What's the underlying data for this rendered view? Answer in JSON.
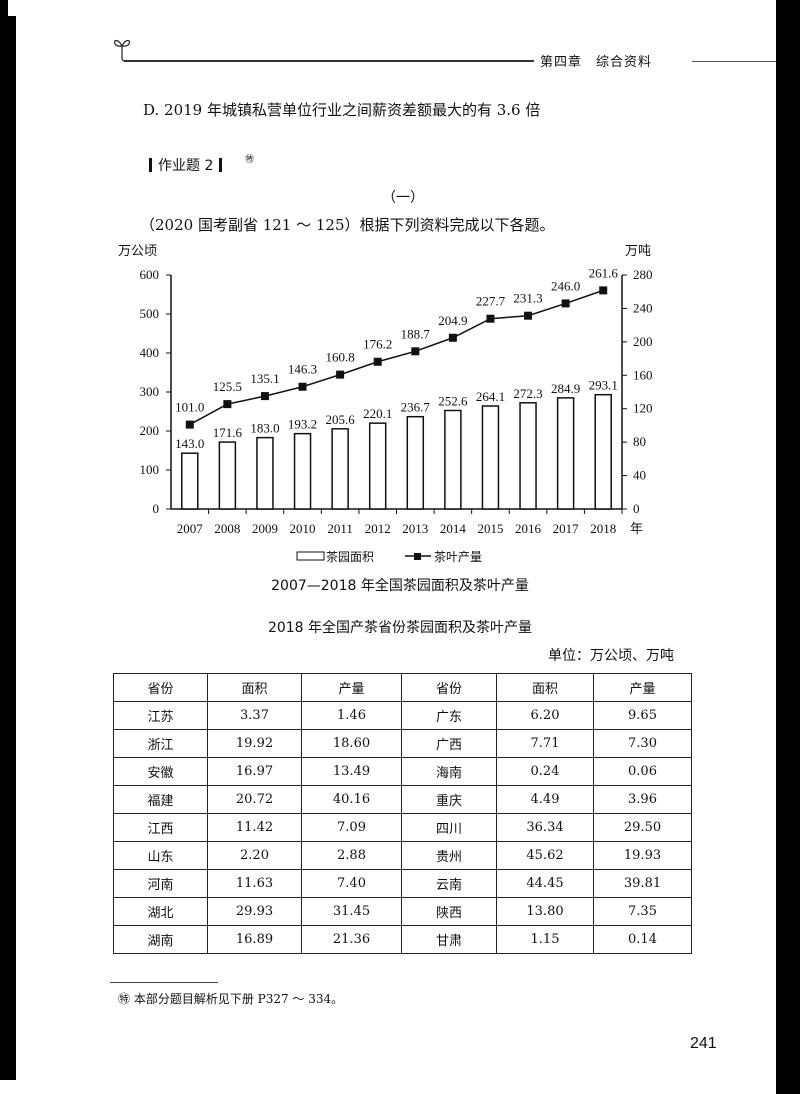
{
  "header": {
    "chapter": "第四章　综合资料"
  },
  "option_d": "D. 2019 年城镇私营单位行业之间薪资差额最大的有 3.6 倍",
  "homework": {
    "label": "作业题 2",
    "mark": "㊕"
  },
  "section": "（一）",
  "intro": "（2020 国考副省 121 ～ 125）根据下列资料完成以下各题。",
  "chart_data": {
    "type": "bar",
    "title": "2007—2018 年全国茶园面积及茶叶产量",
    "xlabel": "年",
    "ylabel_left": "万公顷",
    "ylabel_right": "万吨",
    "categories": [
      "2007",
      "2008",
      "2009",
      "2010",
      "2011",
      "2012",
      "2013",
      "2014",
      "2015",
      "2016",
      "2017",
      "2018"
    ],
    "ylim_left": [
      0,
      600
    ],
    "yticks_left": [
      0,
      100,
      200,
      300,
      400,
      500,
      600
    ],
    "ylim_right": [
      0,
      280
    ],
    "yticks_right": [
      0,
      40,
      80,
      120,
      160,
      200,
      240,
      280
    ],
    "series": [
      {
        "name": "茶园面积",
        "type": "bar",
        "axis": "left",
        "values": [
          143.0,
          171.6,
          183.0,
          193.2,
          205.6,
          220.1,
          236.7,
          252.6,
          264.1,
          272.3,
          284.9,
          293.1
        ]
      },
      {
        "name": "茶叶产量",
        "type": "line",
        "axis": "right",
        "marker": "square",
        "values": [
          101.0,
          125.5,
          135.1,
          146.3,
          160.8,
          176.2,
          188.7,
          204.9,
          227.7,
          231.3,
          246.0,
          261.6
        ]
      }
    ],
    "legend": [
      "茶园面积",
      "茶叶产量"
    ],
    "legend_position": "bottom",
    "grid": false
  },
  "table": {
    "title": "2018 年全国产茶省份茶园面积及茶叶产量",
    "unit": "单位：万公顷、万吨",
    "headers": [
      "省份",
      "面积",
      "产量",
      "省份",
      "面积",
      "产量"
    ],
    "rows": [
      [
        "江苏",
        "3.37",
        "1.46",
        "广东",
        "6.20",
        "9.65"
      ],
      [
        "浙江",
        "19.92",
        "18.60",
        "广西",
        "7.71",
        "7.30"
      ],
      [
        "安徽",
        "16.97",
        "13.49",
        "海南",
        "0.24",
        "0.06"
      ],
      [
        "福建",
        "20.72",
        "40.16",
        "重庆",
        "4.49",
        "3.96"
      ],
      [
        "江西",
        "11.42",
        "7.09",
        "四川",
        "36.34",
        "29.50"
      ],
      [
        "山东",
        "2.20",
        "2.88",
        "贵州",
        "45.62",
        "19.93"
      ],
      [
        "河南",
        "11.63",
        "7.40",
        "云南",
        "44.45",
        "39.81"
      ],
      [
        "湖北",
        "29.93",
        "31.45",
        "陕西",
        "13.80",
        "7.35"
      ],
      [
        "湖南",
        "16.89",
        "21.36",
        "甘肃",
        "1.15",
        "0.14"
      ]
    ]
  },
  "footnote": "㊕ 本部分题目解析见下册 P327 ～ 334。",
  "page_number": "241"
}
